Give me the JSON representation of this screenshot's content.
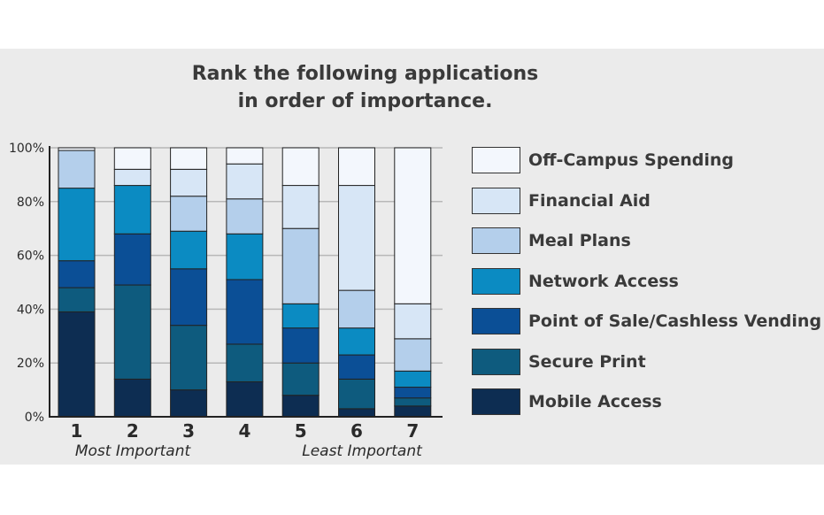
{
  "chart_data": {
    "type": "bar",
    "stacked": true,
    "title": "Rank the following applications\nin order of importance.",
    "categories": [
      "1",
      "2",
      "3",
      "4",
      "5",
      "6",
      "7"
    ],
    "axis_notes": {
      "first": "Most Important",
      "last": "Least Important"
    },
    "ylim": [
      0,
      100
    ],
    "yticks": [
      "0%",
      "20%",
      "40%",
      "60%",
      "80%",
      "100%"
    ],
    "grid": true,
    "legend_position": "right",
    "series": [
      {
        "name": "Mobile Access",
        "color": "#0d2d52",
        "values": [
          39,
          14,
          10,
          13,
          8,
          3,
          4
        ]
      },
      {
        "name": "Secure Print",
        "color": "#0e5b7e",
        "values": [
          9,
          35,
          24,
          14,
          12,
          11,
          3
        ]
      },
      {
        "name": "Point of Sale/Cashless Vending",
        "color": "#0b4f96",
        "values": [
          10,
          19,
          21,
          24,
          13,
          9,
          4
        ]
      },
      {
        "name": "Network Access",
        "color": "#0b8bc2",
        "values": [
          27,
          18,
          14,
          17,
          9,
          10,
          6
        ]
      },
      {
        "name": "Meal Plans",
        "color": "#b4cfeb",
        "values": [
          14,
          0,
          13,
          13,
          28,
          14,
          12
        ]
      },
      {
        "name": "Financial Aid",
        "color": "#d7e6f6",
        "values": [
          0,
          6,
          10,
          13,
          16,
          39,
          13
        ]
      },
      {
        "name": "Off-Campus Spending",
        "color": "#f3f7fd",
        "values": [
          1,
          8,
          8,
          6,
          14,
          14,
          58
        ]
      }
    ]
  }
}
